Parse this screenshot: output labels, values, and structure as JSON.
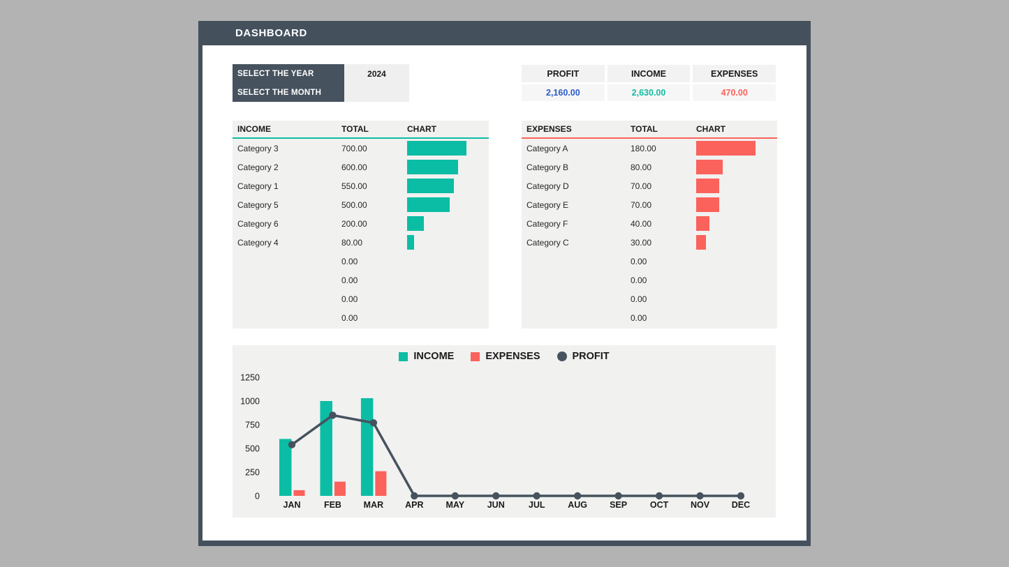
{
  "header": {
    "title": "DASHBOARD"
  },
  "selector": {
    "year_label": "SELECT THE YEAR",
    "month_label": "SELECT THE MONTH",
    "year_value": "2024",
    "month_value": ""
  },
  "summary": {
    "cards": [
      {
        "label": "PROFIT",
        "value": "2,160.00",
        "color": "#2A5CCA"
      },
      {
        "label": "INCOME",
        "value": "2,630.00",
        "color": "#12BCA2"
      },
      {
        "label": "EXPENSES",
        "value": "470.00",
        "color": "#FB625C"
      }
    ]
  },
  "income_table": {
    "headers": [
      "INCOME",
      "TOTAL",
      "CHART"
    ],
    "accent": "#0BBDA4",
    "rows": [
      {
        "name": "Category 3",
        "total": "700.00",
        "value": 700
      },
      {
        "name": "Category 2",
        "total": "600.00",
        "value": 600
      },
      {
        "name": "Category 1",
        "total": "550.00",
        "value": 550
      },
      {
        "name": "Category 5",
        "total": "500.00",
        "value": 500
      },
      {
        "name": "Category 6",
        "total": "200.00",
        "value": 200
      },
      {
        "name": "Category 4",
        "total": "80.00",
        "value": 80
      },
      {
        "name": "",
        "total": "0.00",
        "value": 0
      },
      {
        "name": "",
        "total": "0.00",
        "value": 0
      },
      {
        "name": "",
        "total": "0.00",
        "value": 0
      },
      {
        "name": "",
        "total": "0.00",
        "value": 0
      }
    ]
  },
  "expenses_table": {
    "headers": [
      "EXPENSES",
      "TOTAL",
      "CHART"
    ],
    "accent": "#FB625C",
    "rows": [
      {
        "name": "Category A",
        "total": "180.00",
        "value": 180
      },
      {
        "name": "Category B",
        "total": "80.00",
        "value": 80
      },
      {
        "name": "Category D",
        "total": "70.00",
        "value": 70
      },
      {
        "name": "Category E",
        "total": "70.00",
        "value": 70
      },
      {
        "name": "Category F",
        "total": "40.00",
        "value": 40
      },
      {
        "name": "Category C",
        "total": "30.00",
        "value": 30
      },
      {
        "name": "",
        "total": "0.00",
        "value": 0
      },
      {
        "name": "",
        "total": "0.00",
        "value": 0
      },
      {
        "name": "",
        "total": "0.00",
        "value": 0
      },
      {
        "name": "",
        "total": "0.00",
        "value": 0
      }
    ]
  },
  "chart_data": {
    "type": "bar",
    "subtype": "combo-bar-line",
    "title": "",
    "xlabel": "",
    "ylabel": "",
    "categories": [
      "JAN",
      "FEB",
      "MAR",
      "APR",
      "MAY",
      "JUN",
      "JUL",
      "AUG",
      "SEP",
      "OCT",
      "NOV",
      "DEC"
    ],
    "series": [
      {
        "name": "INCOME",
        "type": "bar",
        "color": "#0BBDA4",
        "values": [
          600,
          1000,
          1030,
          0,
          0,
          0,
          0,
          0,
          0,
          0,
          0,
          0
        ]
      },
      {
        "name": "EXPENSES",
        "type": "bar",
        "color": "#FB625C",
        "values": [
          60,
          150,
          260,
          0,
          0,
          0,
          0,
          0,
          0,
          0,
          0,
          0
        ]
      },
      {
        "name": "PROFIT",
        "type": "line",
        "color": "#46525E",
        "values": [
          540,
          850,
          770,
          0,
          0,
          0,
          0,
          0,
          0,
          0,
          0,
          0
        ]
      }
    ],
    "y_ticks": [
      0,
      250,
      500,
      750,
      1000,
      1250
    ],
    "ylim": [
      0,
      1250
    ],
    "grid": false,
    "legend_position": "top-center"
  },
  "colors": {
    "slate": "#46525E",
    "panel_border": "#44515D",
    "page_background": "#B3B3B3",
    "table_background": "#F1F1F0",
    "income_accent": "#0BBDA4",
    "expenses_accent": "#FB625C",
    "profit_accent": "#2A5CCA"
  }
}
